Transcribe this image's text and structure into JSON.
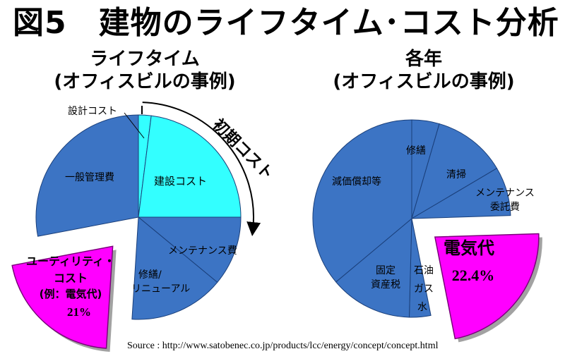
{
  "title": "図5　建物のライフタイム･コスト分析",
  "colors": {
    "pie": "#3c74c4",
    "highlight_cyan": "#33ffff",
    "highlight_magenta": "#ff00ff",
    "edge": "#1a3f7a"
  },
  "chart_data": [
    {
      "type": "pie",
      "subtitle": [
        "ライフタイム",
        "(オフィスビルの事例)"
      ],
      "start_angle_deg": 0,
      "slices": [
        {
          "label": "設計コスト",
          "value": 2,
          "color": "#33ffff"
        },
        {
          "label": "建設コスト",
          "value": 23,
          "color": "#33ffff"
        },
        {
          "label": "メンテナンス費",
          "value": 11,
          "color": "#3c74c4"
        },
        {
          "label": "修繕/リニューアル",
          "value": 15,
          "color": "#3c74c4"
        },
        {
          "label": "ユーティリティ・コスト(例：電気代)21%",
          "value": 21,
          "color": "#ff00ff",
          "exploded": true
        },
        {
          "label": "一般管理費",
          "value": 28,
          "color": "#3c74c4"
        }
      ],
      "annotation": "初期コスト"
    },
    {
      "type": "pie",
      "subtitle": [
        "各年",
        "(オフィスビルの事例)"
      ],
      "start_angle_deg": 0,
      "slices": [
        {
          "label": "修繕",
          "value": 4.5,
          "color": "#3c74c4"
        },
        {
          "label": "清掃",
          "value": 12,
          "color": "#3c74c4"
        },
        {
          "label": "メンテナンス委託費",
          "value": 8,
          "color": "#3c74c4"
        },
        {
          "label": "電気代 22.4%",
          "value": 22.4,
          "color": "#ff00ff",
          "exploded": true
        },
        {
          "label": "石油ガス水",
          "value": 3.5,
          "color": "#3c74c4"
        },
        {
          "label": "固定資産税",
          "value": 13.5,
          "color": "#3c74c4"
        },
        {
          "label": "減価償却等",
          "value": 36.1,
          "color": "#3c74c4"
        }
      ]
    }
  ],
  "labels": {
    "design": "設計コスト",
    "construction": "建設コスト",
    "maintenance": "メンテナンス費",
    "repair": [
      "修繕/",
      "リニューアル"
    ],
    "utility": [
      "ユーティリティ・",
      "コスト",
      "(例：電気代)",
      "21%"
    ],
    "admin": "一般管理費",
    "initial": "初期コスト",
    "r_repair": "修繕",
    "r_clean": "清掃",
    "r_maint": [
      "メンテナンス",
      "委託費"
    ],
    "r_elec": "電気代",
    "r_elec_pct": "22.4%",
    "r_fuel": [
      "石",
      "油",
      "ガ",
      "ス",
      "水"
    ],
    "r_tax": [
      "固定",
      "資産税"
    ],
    "r_depr": "減価償却等"
  },
  "source": "Source : http://www.satobenec.co.jp/products/lcc/energy/concept/concept.html"
}
